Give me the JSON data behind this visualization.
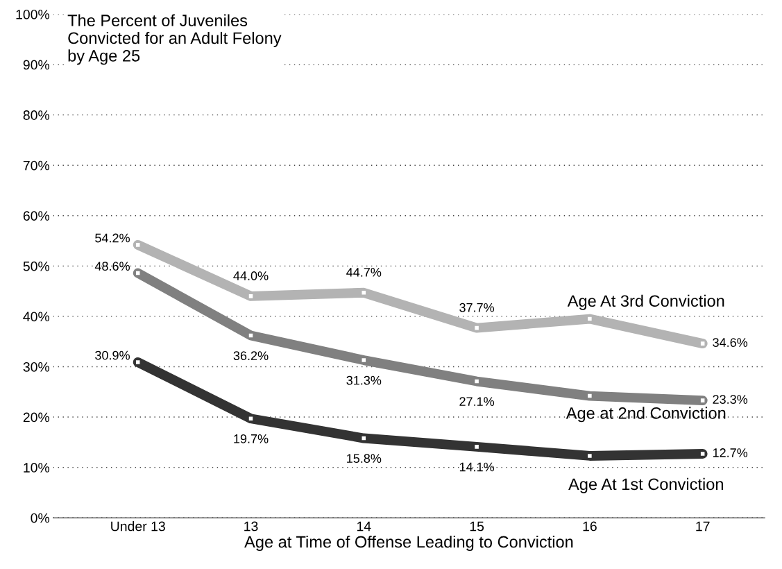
{
  "chart_data": {
    "type": "line",
    "title": "The Percent of Juveniles\nConvicted for an Adult Felony\nby Age 25",
    "xlabel": "Age at Time of Offense Leading to Conviction",
    "categories": [
      "Under 13",
      "13",
      "14",
      "15",
      "16",
      "17"
    ],
    "series": [
      {
        "name": "Age At 3rd Conviction",
        "color": "#b3b3b3",
        "values": [
          54.2,
          44.0,
          44.7,
          37.7,
          39.5,
          34.6
        ],
        "value_labels": [
          "54.2%",
          "44.0%",
          "44.7%",
          "37.7%",
          null,
          "34.6%"
        ]
      },
      {
        "name": "Age at 2nd Conviction",
        "color": "#808080",
        "values": [
          48.6,
          36.2,
          31.3,
          27.1,
          24.2,
          23.3
        ],
        "value_labels": [
          "48.6%",
          "36.2%",
          "31.3%",
          "27.1%",
          null,
          "23.3%"
        ]
      },
      {
        "name": "Age At 1st Conviction",
        "color": "#333333",
        "values": [
          30.9,
          19.7,
          15.8,
          14.1,
          12.3,
          12.7
        ],
        "value_labels": [
          "30.9%",
          "19.7%",
          "15.8%",
          "14.1%",
          null,
          "12.7%"
        ]
      }
    ],
    "ylim": [
      0,
      100
    ],
    "yticks": [
      {
        "value": 0,
        "label": "0%"
      },
      {
        "value": 10,
        "label": "10%"
      },
      {
        "value": 20,
        "label": "20%"
      },
      {
        "value": 30,
        "label": "30%"
      },
      {
        "value": 40,
        "label": "40%"
      },
      {
        "value": 50,
        "label": "50%"
      },
      {
        "value": 60,
        "label": "60%"
      },
      {
        "value": 70,
        "label": "70%"
      },
      {
        "value": 80,
        "label": "80%"
      },
      {
        "value": 90,
        "label": "90%"
      },
      {
        "value": 100,
        "label": "100%"
      }
    ],
    "grid": "y",
    "legend": false,
    "marker": "square",
    "line_style": "solid"
  }
}
